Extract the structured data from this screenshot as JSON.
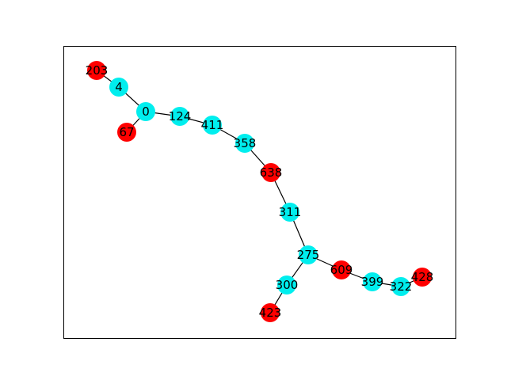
{
  "graph": {
    "colors": {
      "highlighted": "#ff0000",
      "regular": "#00eeee",
      "edge": "#000000",
      "frame": "#000000"
    },
    "nodes": [
      {
        "id": "203",
        "group": "highlighted"
      },
      {
        "id": "4",
        "group": "regular"
      },
      {
        "id": "0",
        "group": "regular"
      },
      {
        "id": "67",
        "group": "highlighted"
      },
      {
        "id": "124",
        "group": "regular"
      },
      {
        "id": "411",
        "group": "regular"
      },
      {
        "id": "358",
        "group": "regular"
      },
      {
        "id": "638",
        "group": "highlighted"
      },
      {
        "id": "311",
        "group": "regular"
      },
      {
        "id": "275",
        "group": "regular"
      },
      {
        "id": "609",
        "group": "highlighted"
      },
      {
        "id": "399",
        "group": "regular"
      },
      {
        "id": "322",
        "group": "regular"
      },
      {
        "id": "428",
        "group": "highlighted"
      },
      {
        "id": "300",
        "group": "regular"
      },
      {
        "id": "423",
        "group": "highlighted"
      }
    ],
    "edges": [
      [
        "203",
        "4"
      ],
      [
        "4",
        "0"
      ],
      [
        "0",
        "67"
      ],
      [
        "0",
        "124"
      ],
      [
        "124",
        "411"
      ],
      [
        "411",
        "358"
      ],
      [
        "358",
        "638"
      ],
      [
        "638",
        "311"
      ],
      [
        "311",
        "275"
      ],
      [
        "275",
        "609"
      ],
      [
        "609",
        "399"
      ],
      [
        "399",
        "322"
      ],
      [
        "322",
        "428"
      ],
      [
        "275",
        "300"
      ],
      [
        "300",
        "423"
      ]
    ]
  }
}
